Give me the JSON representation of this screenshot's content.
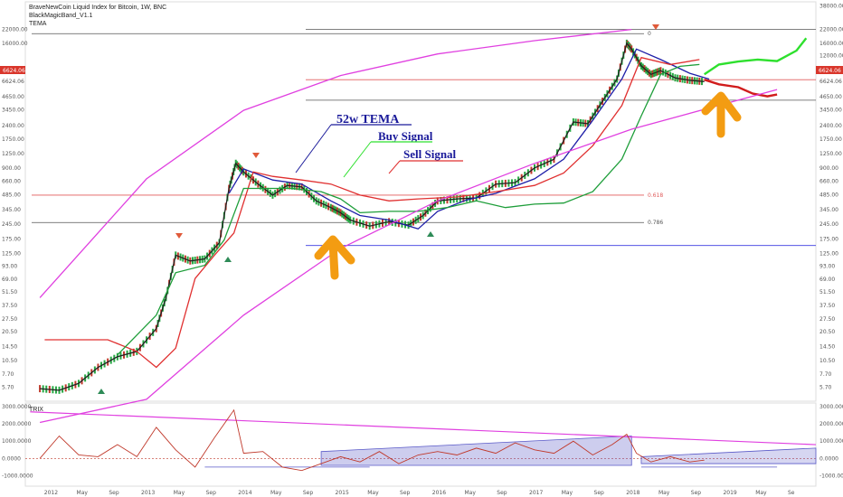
{
  "header": {
    "line1": "BraveNewCoin Liquid Index for Bitcoin, 1W, BNC",
    "line2": "BlackMagicBand_V1.1",
    "line3": "TEMA"
  },
  "price_badge": {
    "left": "6624.06",
    "right": "6624.06",
    "color": "#d9362b"
  },
  "annotations": {
    "tema": "52w TEMA",
    "buy": "Buy Signal",
    "sell": "Sell Signal"
  },
  "fib_levels": [
    {
      "label": "0",
      "value": 20000,
      "color": "#555555"
    },
    {
      "label": "0.618",
      "value": 480,
      "color": "#e05a5a"
    },
    {
      "label": "0.786",
      "value": 255,
      "color": "#555555"
    }
  ],
  "lower_panel": {
    "label": "TRIX"
  },
  "chart_data": [
    {
      "type": "line",
      "title": "BraveNewCoin Liquid Index for Bitcoin, 1W, BNC",
      "yscale": "log",
      "ylim": [
        4.2,
        40000
      ],
      "y_ticks_right": [
        "38000.00",
        "22000.00",
        "16000.00",
        "12000.00",
        "8800.00",
        "6624.06",
        "4650.00",
        "3450.00",
        "2400.00",
        "1750.00",
        "1250.00",
        "900.00",
        "660.00",
        "485.00",
        "345.00",
        "245.00",
        "175.00",
        "125.00",
        "93.00",
        "69.00",
        "51.50",
        "37.50",
        "27.50",
        "20.50",
        "14.50",
        "10.50",
        "7.70",
        "5.70"
      ],
      "y_ticks_left": [
        "22000.00",
        "16000.00",
        "8800.00",
        "6624.06",
        "4650.00",
        "3450.00",
        "2400.00",
        "1750.00",
        "1250.00",
        "900.00",
        "660.00",
        "485.00",
        "345.00",
        "245.00",
        "175.00",
        "125.00",
        "93.00",
        "69.00",
        "51.50",
        "37.50",
        "27.50",
        "20.50",
        "14.50",
        "10.50",
        "7.70",
        "5.70"
      ],
      "x_labels": [
        "2012",
        "May",
        "Sep",
        "2013",
        "May",
        "Sep",
        "2014",
        "May",
        "Sep",
        "2015",
        "May",
        "Sep",
        "2016",
        "May",
        "Sep",
        "2017",
        "May",
        "Sep",
        "2018",
        "May",
        "Sep",
        "2019",
        "May",
        "Se"
      ],
      "series": [
        {
          "color": "#222222",
          "x": [
            2011.9,
            2012.1,
            2012.3,
            2012.5,
            2012.7,
            2012.9,
            2013.1,
            2013.2,
            2013.3,
            2013.45,
            2013.6,
            2013.75,
            2013.85,
            2013.92,
            2014.0,
            2014.15,
            2014.3,
            2014.45,
            2014.6,
            2014.75,
            2014.9,
            2015.0,
            2015.1,
            2015.3,
            2015.5,
            2015.7,
            2015.85,
            2016.0,
            2016.2,
            2016.4,
            2016.6,
            2016.8,
            2017.0,
            2017.2,
            2017.4,
            2017.55,
            2017.7,
            2017.85,
            2017.95,
            2018.0,
            2018.1,
            2018.2,
            2018.3,
            2018.45,
            2018.6,
            2018.75
          ],
          "values": [
            5.5,
            5.3,
            6.2,
            9.0,
            11.5,
            13.0,
            22,
            45,
            120,
            105,
            110,
            160,
            560,
            1000,
            820,
            620,
            480,
            600,
            580,
            420,
            360,
            320,
            270,
            235,
            260,
            240,
            300,
            420,
            440,
            450,
            620,
            640,
            900,
            1100,
            2600,
            2500,
            4200,
            7000,
            16000,
            14000,
            9500,
            7800,
            8500,
            7200,
            6800,
            6600
          ]
        },
        {
          "color": "#1e1ea8",
          "x": [
            2013.85,
            2014.0,
            2014.3,
            2014.6,
            2014.9,
            2015.2,
            2015.5,
            2015.8,
            2016.0,
            2016.3,
            2016.6,
            2017.0,
            2017.3,
            2017.6,
            2017.9,
            2018.05,
            2018.3,
            2018.6,
            2018.8
          ],
          "values": [
            500,
            880,
            680,
            620,
            420,
            300,
            270,
            220,
            330,
            430,
            500,
            700,
            1100,
            2700,
            7000,
            14000,
            11000,
            8000,
            7000
          ]
        },
        {
          "color": "#e03030",
          "x": [
            2011.95,
            2012.6,
            2012.9,
            2013.1,
            2013.3,
            2013.5,
            2013.7,
            2013.9,
            2014.1,
            2014.3,
            2014.6,
            2014.9,
            2015.2,
            2015.5,
            2015.8,
            2016.2,
            2016.6,
            2017.0,
            2017.3,
            2017.6,
            2017.9,
            2018.1,
            2018.4,
            2018.7
          ],
          "values": [
            17,
            17,
            13,
            9,
            14,
            70,
            120,
            200,
            820,
            740,
            680,
            620,
            480,
            420,
            440,
            460,
            520,
            600,
            800,
            1500,
            3800,
            11500,
            9800,
            11000
          ]
        },
        {
          "color": "#1e9e3a",
          "x": [
            2012.7,
            2013.1,
            2013.3,
            2013.6,
            2013.8,
            2014.0,
            2014.2,
            2014.5,
            2014.8,
            2015.0,
            2015.2,
            2015.5,
            2015.8,
            2016.1,
            2016.4,
            2016.7,
            2017.0,
            2017.3,
            2017.6,
            2017.9,
            2018.1,
            2018.3,
            2018.5,
            2018.7
          ],
          "values": [
            12,
            30,
            80,
            95,
            170,
            560,
            560,
            560,
            520,
            440,
            320,
            330,
            330,
            360,
            420,
            360,
            390,
            400,
            520,
            1100,
            3000,
            7800,
            9400,
            9800
          ]
        },
        {
          "color": "#2ee02e",
          "x": [
            2018.75,
            2018.9,
            2019.1,
            2019.3,
            2019.5,
            2019.7,
            2019.8
          ],
          "values": [
            7800,
            9800,
            10500,
            11000,
            10600,
            13500,
            18000
          ]
        },
        {
          "color": "#d11c1c",
          "x": [
            2018.75,
            2018.9,
            2019.1,
            2019.25,
            2019.4,
            2019.5
          ],
          "values": [
            6900,
            6200,
            5800,
            5000,
            4700,
            4900
          ]
        },
        {
          "color": "#e040e0",
          "x": [
            2011.9,
            2013.0,
            2014.0,
            2015.0,
            2016.0,
            2017.0,
            2018.0
          ],
          "values": [
            45,
            700,
            3400,
            7600,
            12500,
            17000,
            22000
          ]
        },
        {
          "color": "#e040e0",
          "x": [
            2011.9,
            2013.0,
            2014.0,
            2015.0,
            2016.0,
            2017.0,
            2018.0,
            2019.5
          ],
          "values": [
            0.8,
            4.3,
            30,
            140,
            420,
            1000,
            2200,
            5500
          ]
        }
      ]
    },
    {
      "type": "line",
      "title": "TRIX",
      "ylim": [
        -1500,
        3000
      ],
      "y_ticks": [
        "3000.0000",
        "2000.0000",
        "1000.0000",
        "0.0000",
        "-1000.0000"
      ],
      "series": [
        {
          "color": "#c0392b",
          "x": [
            2011.9,
            2012.1,
            2012.3,
            2012.5,
            2012.7,
            2012.9,
            2013.1,
            2013.3,
            2013.5,
            2013.7,
            2013.9,
            2014.0,
            2014.2,
            2014.4,
            2014.6,
            2014.8,
            2015.0,
            2015.2,
            2015.4,
            2015.6,
            2015.8,
            2016.0,
            2016.2,
            2016.4,
            2016.6,
            2016.8,
            2017.0,
            2017.2,
            2017.4,
            2017.6,
            2017.8,
            2017.95,
            2018.05,
            2018.2,
            2018.4,
            2018.6,
            2018.75
          ],
          "values": [
            0,
            1300,
            200,
            100,
            800,
            100,
            1800,
            500,
            -500,
            1200,
            2800,
            300,
            400,
            -500,
            -700,
            -300,
            100,
            -200,
            400,
            -300,
            200,
            400,
            200,
            600,
            300,
            900,
            500,
            300,
            1000,
            200,
            800,
            1400,
            300,
            -200,
            100,
            -200,
            -100
          ]
        }
      ]
    }
  ]
}
